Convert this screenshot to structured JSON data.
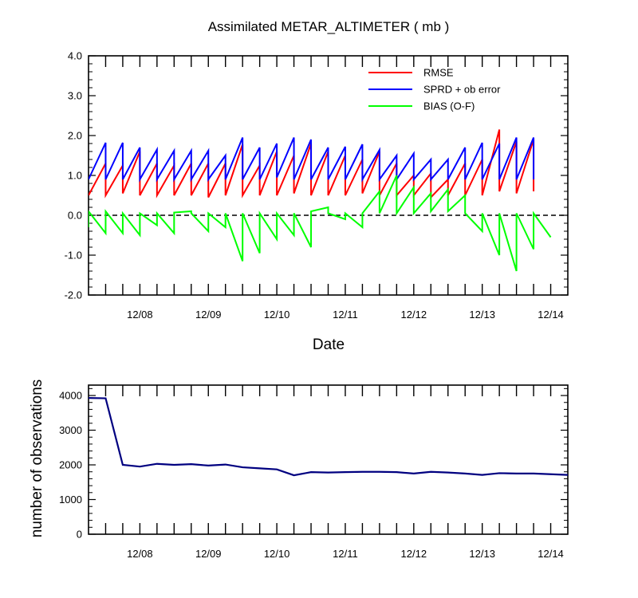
{
  "chart_data": [
    {
      "type": "line",
      "title": "Assimilated METAR_ALTIMETER ( mb )",
      "xlabel": "Date",
      "ylabel": "",
      "ylim": [
        -2.0,
        4.0
      ],
      "xlim": [
        0,
        7.0
      ],
      "yticks": [
        -2.0,
        -1.0,
        0.0,
        1.0,
        2.0,
        3.0,
        4.0
      ],
      "ytick_labels": [
        "-2.0",
        "-1.0",
        "0.0",
        "1.0",
        "2.0",
        "3.0",
        "4.0"
      ],
      "x_tick_labels": [
        "12/08",
        "12/09",
        "12/10",
        "12/11",
        "12/12",
        "12/13",
        "12/14"
      ],
      "x_tick_positions": [
        0.75,
        1.75,
        2.75,
        3.75,
        4.75,
        5.75,
        6.75
      ],
      "zero_line": true,
      "legend": [
        "RMSE",
        "SPRD + ob error",
        "BIAS (O-F)"
      ],
      "legend_position": "top-right",
      "series": [
        {
          "name": "RMSE",
          "color": "#ff0000",
          "points": [
            [
              0,
              0.5
            ],
            [
              0.25,
              1.3
            ],
            [
              0.25,
              0.5
            ],
            [
              0.5,
              1.25
            ],
            [
              0.5,
              0.55
            ],
            [
              0.75,
              1.6
            ],
            [
              0.75,
              0.5
            ],
            [
              1.0,
              1.3
            ],
            [
              1.0,
              0.5
            ],
            [
              1.25,
              1.25
            ],
            [
              1.25,
              0.5
            ],
            [
              1.5,
              1.3
            ],
            [
              1.5,
              0.5
            ],
            [
              1.75,
              1.3
            ],
            [
              1.75,
              0.45
            ],
            [
              2.0,
              1.3
            ],
            [
              2.0,
              0.5
            ],
            [
              2.25,
              1.78
            ],
            [
              2.25,
              0.5
            ],
            [
              2.5,
              1.25
            ],
            [
              2.5,
              0.5
            ],
            [
              2.75,
              1.6
            ],
            [
              2.75,
              0.5
            ],
            [
              3.0,
              1.5
            ],
            [
              3.0,
              0.55
            ],
            [
              3.25,
              1.8
            ],
            [
              3.25,
              0.5
            ],
            [
              3.5,
              1.6
            ],
            [
              3.5,
              0.5
            ],
            [
              3.75,
              1.5
            ],
            [
              3.75,
              0.5
            ],
            [
              4.0,
              1.4
            ],
            [
              4.0,
              0.55
            ],
            [
              4.25,
              1.6
            ],
            [
              4.25,
              0.5
            ],
            [
              4.5,
              1.3
            ],
            [
              4.5,
              0.5
            ],
            [
              4.75,
              1.0
            ],
            [
              4.75,
              0.5
            ],
            [
              5.0,
              1.05
            ],
            [
              5.0,
              0.45
            ],
            [
              5.25,
              0.9
            ],
            [
              5.25,
              0.5
            ],
            [
              5.5,
              1.3
            ],
            [
              5.5,
              0.5
            ],
            [
              5.75,
              1.4
            ],
            [
              5.75,
              0.5
            ],
            [
              6.0,
              2.15
            ],
            [
              6.0,
              0.6
            ],
            [
              6.25,
              1.85
            ],
            [
              6.25,
              0.55
            ],
            [
              6.5,
              1.9
            ],
            [
              6.5,
              0.6
            ]
          ]
        },
        {
          "name": "SPRD + ob error",
          "color": "#0000ff",
          "points": [
            [
              0,
              0.9
            ],
            [
              0.25,
              1.82
            ],
            [
              0.25,
              0.9
            ],
            [
              0.5,
              1.82
            ],
            [
              0.5,
              0.9
            ],
            [
              0.75,
              1.7
            ],
            [
              0.75,
              0.9
            ],
            [
              1.0,
              1.65
            ],
            [
              1.0,
              0.9
            ],
            [
              1.25,
              1.62
            ],
            [
              1.25,
              0.9
            ],
            [
              1.5,
              1.62
            ],
            [
              1.5,
              0.9
            ],
            [
              1.75,
              1.62
            ],
            [
              1.75,
              0.9
            ],
            [
              2.0,
              1.5
            ],
            [
              2.0,
              0.9
            ],
            [
              2.25,
              1.95
            ],
            [
              2.25,
              0.9
            ],
            [
              2.5,
              1.7
            ],
            [
              2.5,
              0.9
            ],
            [
              2.75,
              1.8
            ],
            [
              2.75,
              0.95
            ],
            [
              3.0,
              1.95
            ],
            [
              3.0,
              0.9
            ],
            [
              3.25,
              1.9
            ],
            [
              3.25,
              0.9
            ],
            [
              3.5,
              1.7
            ],
            [
              3.5,
              0.9
            ],
            [
              3.75,
              1.72
            ],
            [
              3.75,
              0.9
            ],
            [
              4.0,
              1.78
            ],
            [
              4.0,
              0.9
            ],
            [
              4.25,
              1.64
            ],
            [
              4.25,
              0.9
            ],
            [
              4.5,
              1.5
            ],
            [
              4.5,
              0.9
            ],
            [
              4.75,
              1.55
            ],
            [
              4.75,
              0.9
            ],
            [
              5.0,
              1.4
            ],
            [
              5.0,
              0.9
            ],
            [
              5.25,
              1.4
            ],
            [
              5.25,
              0.9
            ],
            [
              5.5,
              1.7
            ],
            [
              5.5,
              0.9
            ],
            [
              5.75,
              1.82
            ],
            [
              5.75,
              0.9
            ],
            [
              6.0,
              1.8
            ],
            [
              6.0,
              0.9
            ],
            [
              6.25,
              1.95
            ],
            [
              6.25,
              0.9
            ],
            [
              6.5,
              1.95
            ],
            [
              6.5,
              0.9
            ]
          ]
        },
        {
          "name": "BIAS (O-F)",
          "color": "#00ff00",
          "points": [
            [
              0,
              -0.3
            ],
            [
              0,
              0.1
            ],
            [
              0.25,
              -0.45
            ],
            [
              0.25,
              0.1
            ],
            [
              0.5,
              -0.45
            ],
            [
              0.5,
              0.05
            ],
            [
              0.75,
              -0.5
            ],
            [
              0.75,
              0.05
            ],
            [
              1.0,
              -0.25
            ],
            [
              1.0,
              0.05
            ],
            [
              1.25,
              -0.45
            ],
            [
              1.25,
              0.07
            ],
            [
              1.5,
              0.1
            ],
            [
              1.5,
              0.05
            ],
            [
              1.75,
              -0.4
            ],
            [
              1.75,
              0.05
            ],
            [
              2.0,
              -0.3
            ],
            [
              2.0,
              0.05
            ],
            [
              2.25,
              -1.15
            ],
            [
              2.25,
              0.05
            ],
            [
              2.5,
              -0.95
            ],
            [
              2.5,
              0.05
            ],
            [
              2.75,
              -0.6
            ],
            [
              2.75,
              0.05
            ],
            [
              3.0,
              -0.5
            ],
            [
              3.0,
              0.05
            ],
            [
              3.25,
              -0.8
            ],
            [
              3.25,
              0.1
            ],
            [
              3.5,
              0.2
            ],
            [
              3.5,
              0.05
            ],
            [
              3.75,
              -0.1
            ],
            [
              3.75,
              0.05
            ],
            [
              4.0,
              -0.3
            ],
            [
              4.0,
              0.05
            ],
            [
              4.25,
              0.6
            ],
            [
              4.25,
              0.05
            ],
            [
              4.5,
              1.0
            ],
            [
              4.5,
              0.05
            ],
            [
              4.75,
              0.7
            ],
            [
              4.75,
              0.05
            ],
            [
              5.0,
              0.55
            ],
            [
              5.0,
              0.1
            ],
            [
              5.25,
              0.65
            ],
            [
              5.25,
              0.1
            ],
            [
              5.5,
              0.5
            ],
            [
              5.5,
              0.05
            ],
            [
              5.75,
              -0.4
            ],
            [
              5.75,
              0.05
            ],
            [
              6.0,
              -1.0
            ],
            [
              6.0,
              0.05
            ],
            [
              6.25,
              -1.4
            ],
            [
              6.25,
              0.05
            ],
            [
              6.5,
              -0.85
            ],
            [
              6.5,
              0.05
            ],
            [
              6.75,
              -0.55
            ]
          ]
        }
      ]
    },
    {
      "type": "line",
      "title": "",
      "xlabel": "",
      "ylabel": "number of observations",
      "ylim": [
        0,
        4300
      ],
      "xlim": [
        0,
        7.0
      ],
      "yticks": [
        0,
        1000,
        2000,
        3000,
        4000
      ],
      "ytick_labels": [
        "0",
        "1000",
        "2000",
        "3000",
        "4000"
      ],
      "x_tick_labels": [
        "12/08",
        "12/09",
        "12/10",
        "12/11",
        "12/12",
        "12/13",
        "12/14"
      ],
      "x_tick_positions": [
        0.75,
        1.75,
        2.75,
        3.75,
        4.75,
        5.75,
        6.75
      ],
      "series": [
        {
          "name": "observations",
          "color": "#000080",
          "points": [
            [
              0,
              3930
            ],
            [
              0.25,
              3920
            ],
            [
              0.5,
              2000
            ],
            [
              0.75,
              1950
            ],
            [
              1.0,
              2030
            ],
            [
              1.25,
              2000
            ],
            [
              1.5,
              2020
            ],
            [
              1.75,
              1980
            ],
            [
              2.0,
              2010
            ],
            [
              2.25,
              1930
            ],
            [
              2.5,
              1900
            ],
            [
              2.75,
              1870
            ],
            [
              3.0,
              1700
            ],
            [
              3.25,
              1790
            ],
            [
              3.5,
              1780
            ],
            [
              3.75,
              1790
            ],
            [
              4.0,
              1800
            ],
            [
              4.25,
              1800
            ],
            [
              4.5,
              1790
            ],
            [
              4.75,
              1750
            ],
            [
              5.0,
              1800
            ],
            [
              5.25,
              1780
            ],
            [
              5.5,
              1750
            ],
            [
              5.75,
              1710
            ],
            [
              6.0,
              1760
            ],
            [
              6.25,
              1750
            ],
            [
              6.5,
              1750
            ],
            [
              6.75,
              1730
            ],
            [
              7.0,
              1710
            ]
          ]
        }
      ]
    }
  ]
}
